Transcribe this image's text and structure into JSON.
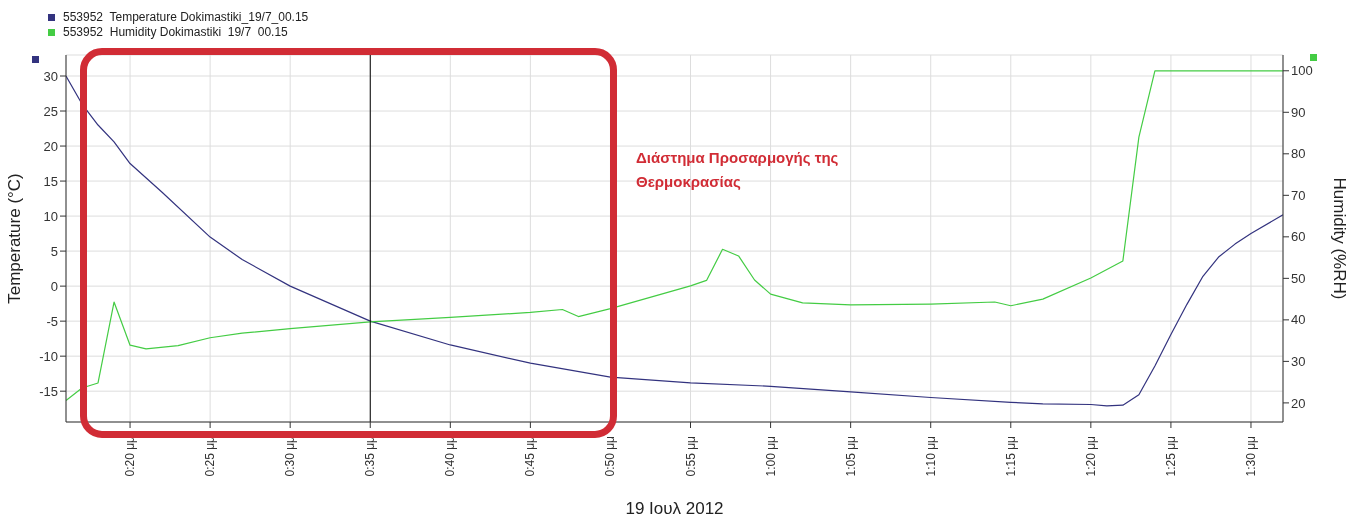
{
  "chart_data": {
    "type": "line",
    "xlabel": "19 Ιουλ 2012",
    "ylabel": "Temperature (°C)",
    "y2label": "Humidity (%RH)",
    "annotations": [
      "Διάστημα Προσαρμογής της Θερμοκρασίας"
    ],
    "xlim": [
      "2012-07-19T12:16",
      "2012-07-19T13:32"
    ],
    "xticks": [
      {
        "value": "2012-07-19T12:20",
        "label": "0:20 μμ"
      },
      {
        "value": "2012-07-19T12:25",
        "label": "0:25 μμ"
      },
      {
        "value": "2012-07-19T12:30",
        "label": "0:30 μμ"
      },
      {
        "value": "2012-07-19T12:35",
        "label": "0:35 μμ"
      },
      {
        "value": "2012-07-19T12:40",
        "label": "0:40 μμ"
      },
      {
        "value": "2012-07-19T12:45",
        "label": "0:45 μμ"
      },
      {
        "value": "2012-07-19T12:50",
        "label": "0:50 μμ"
      },
      {
        "value": "2012-07-19T12:55",
        "label": "0:55 μμ"
      },
      {
        "value": "2012-07-19T13:00",
        "label": "1:00 μμ"
      },
      {
        "value": "2012-07-19T13:05",
        "label": "1:05 μμ"
      },
      {
        "value": "2012-07-19T13:10",
        "label": "1:10 μμ"
      },
      {
        "value": "2012-07-19T13:15",
        "label": "1:15 μμ"
      },
      {
        "value": "2012-07-19T13:20",
        "label": "1:20 μμ"
      },
      {
        "value": "2012-07-19T13:25",
        "label": "1:25 μμ"
      },
      {
        "value": "2012-07-19T13:30",
        "label": "1:30 μμ"
      }
    ],
    "ylim": [
      -19.4,
      33
    ],
    "yticks": [
      -15,
      -10,
      -5,
      0,
      5,
      10,
      15,
      20,
      25,
      30
    ],
    "y2lim": [
      15.4,
      103.8
    ],
    "y2ticks": [
      20,
      30,
      40,
      50,
      60,
      70,
      80,
      90,
      100
    ],
    "grid": true,
    "legend": "top left",
    "marker": "none",
    "line_style": "solid",
    "series": [
      {
        "name": "553952  Temperature Dokimastiki_19/7_00.15",
        "color": "#33337f",
        "x": [
          "2012-07-19T12:16",
          "2012-07-19T12:17",
          "2012-07-19T12:18",
          "2012-07-19T12:19",
          "2012-07-19T12:20",
          "2012-07-19T12:22",
          "2012-07-19T12:25",
          "2012-07-19T12:27",
          "2012-07-19T12:30",
          "2012-07-19T12:35",
          "2012-07-19T12:40",
          "2012-07-19T12:45",
          "2012-07-19T12:50",
          "2012-07-19T12:55",
          "2012-07-19T13:00",
          "2012-07-19T13:05",
          "2012-07-19T13:10",
          "2012-07-19T13:15",
          "2012-07-19T13:17",
          "2012-07-19T13:20",
          "2012-07-19T13:21",
          "2012-07-19T13:22",
          "2012-07-19T13:23",
          "2012-07-19T13:24",
          "2012-07-19T13:25",
          "2012-07-19T13:26",
          "2012-07-19T13:27",
          "2012-07-19T13:28",
          "2012-07-19T13:29",
          "2012-07-19T13:30",
          "2012-07-19T13:32"
        ],
        "values": [
          30.0,
          26.0,
          23.0,
          20.6,
          17.5,
          13.4,
          7.0,
          3.8,
          0,
          -5,
          -8.4,
          -11,
          -13,
          -13.8,
          -14.3,
          -15.1,
          -15.9,
          -16.6,
          -16.8,
          -16.9,
          -17.1,
          -17.0,
          -15.5,
          -11.4,
          -6.9,
          -2.6,
          1.4,
          4.2,
          6.0,
          7.5,
          10.2
        ]
      },
      {
        "name": "553952  Humidity Dokimastiki  19/7  00.15",
        "color": "#44cc44",
        "axis": "y2",
        "x": [
          "2012-07-19T12:16",
          "2012-07-19T12:17",
          "2012-07-19T12:18",
          "2012-07-19T12:19",
          "2012-07-19T12:20",
          "2012-07-19T12:21",
          "2012-07-19T12:23",
          "2012-07-19T12:25",
          "2012-07-19T12:27",
          "2012-07-19T12:30",
          "2012-07-19T12:35",
          "2012-07-19T12:40",
          "2012-07-19T12:45",
          "2012-07-19T12:47",
          "2012-07-19T12:48",
          "2012-07-19T12:50",
          "2012-07-19T12:55",
          "2012-07-19T12:56",
          "2012-07-19T12:57",
          "2012-07-19T12:58",
          "2012-07-19T12:59",
          "2012-07-19T13:00",
          "2012-07-19T13:02",
          "2012-07-19T13:05",
          "2012-07-19T13:10",
          "2012-07-19T13:14",
          "2012-07-19T13:15",
          "2012-07-19T13:17",
          "2012-07-19T13:20",
          "2012-07-19T13:22",
          "2012-07-19T13:23",
          "2012-07-19T13:24",
          "2012-07-19T13:32"
        ],
        "values": [
          20.6,
          23.6,
          24.8,
          44.3,
          33.9,
          33.0,
          33.8,
          35.7,
          36.8,
          37.9,
          39.5,
          40.6,
          41.8,
          42.5,
          40.8,
          42.7,
          48.2,
          49.5,
          57.0,
          55.4,
          49.6,
          46.2,
          44.1,
          43.6,
          43.8,
          44.3,
          43.4,
          45.0,
          50.1,
          54.2,
          84,
          100,
          100
        ]
      }
    ],
    "ref_lines": [
      {
        "axis": "x",
        "value": "2012-07-19T12:35",
        "color": "#000000"
      }
    ]
  }
}
